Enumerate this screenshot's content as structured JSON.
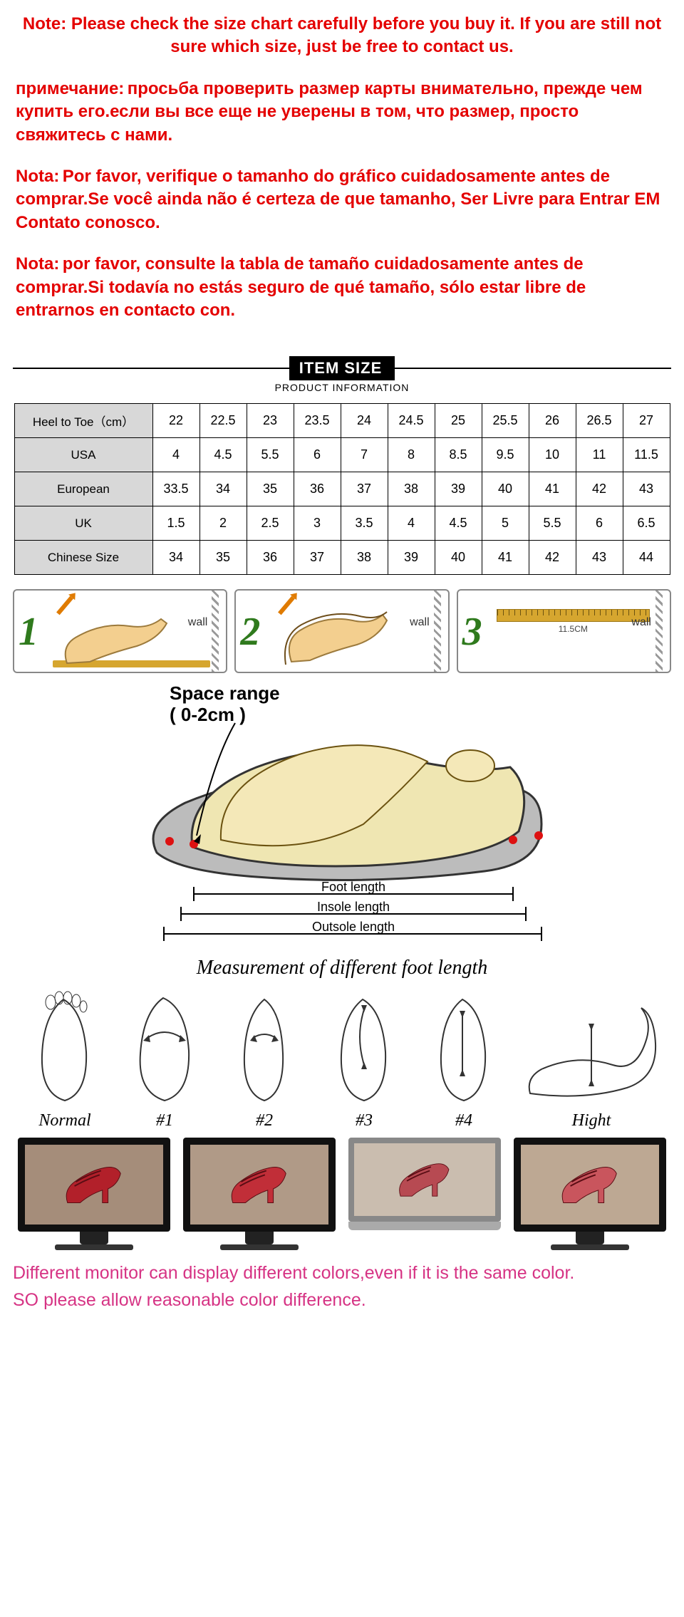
{
  "notes": {
    "en": "Note: Please check the size chart carefully before you buy it. If you are still not sure which size, just be free to contact us.",
    "ru_label": "примечание:",
    "ru_body": "просьба проверить размер карты внимательно, прежде чем купить его.если вы все еще не уверены в том, что размер, просто свяжитесь с нами.",
    "pt_label": "Nota:",
    "pt_body": "Por favor, verifique o tamanho do gráfico cuidadosamente antes de comprar.Se você ainda não é certeza de que tamanho, Ser Livre para Entrar EM Contato conosco.",
    "es_label": "Nota:",
    "es_body": "por favor, consulte la tabla de tamaño cuidadosamente antes de comprar.Si todavía no estás seguro de qué tamaño, sólo estar libre de entrarnos en contacto con."
  },
  "size_header": {
    "title": "ITEM SIZE",
    "subtitle": "PRODUCT INFORMATION"
  },
  "size_table": {
    "rows": [
      {
        "label": "Heel to Toe（cm）",
        "cells": [
          "22",
          "22.5",
          "23",
          "23.5",
          "24",
          "24.5",
          "25",
          "25.5",
          "26",
          "26.5",
          "27"
        ]
      },
      {
        "label": "USA",
        "cells": [
          "4",
          "4.5",
          "5.5",
          "6",
          "7",
          "8",
          "8.5",
          "9.5",
          "10",
          "11",
          "11.5"
        ]
      },
      {
        "label": "European",
        "cells": [
          "33.5",
          "34",
          "35",
          "36",
          "37",
          "38",
          "39",
          "40",
          "41",
          "42",
          "43"
        ]
      },
      {
        "label": "UK",
        "cells": [
          "1.5",
          "2",
          "2.5",
          "3",
          "3.5",
          "4",
          "4.5",
          "5",
          "5.5",
          "6",
          "6.5"
        ]
      },
      {
        "label": "Chinese Size",
        "cells": [
          "34",
          "35",
          "36",
          "37",
          "38",
          "39",
          "40",
          "41",
          "42",
          "43",
          "44"
        ]
      }
    ]
  },
  "steps": {
    "wall_label": "wall",
    "ruler_value": "11.5CM",
    "numbers": [
      "1",
      "2",
      "3"
    ]
  },
  "diagram": {
    "space_range_title": "Space range",
    "space_range_value": "( 0-2cm )",
    "foot_length": "Foot length",
    "insole_length": "Insole length",
    "outsole_length": "Outsole length",
    "caption": "Measurement of different foot length"
  },
  "foot_types": {
    "labels": [
      "Normal",
      "#1",
      "#2",
      "#3",
      "#4",
      "Hight"
    ]
  },
  "monitors": {
    "heel_colors": [
      "#b2202a",
      "#c12e38",
      "#b74a52",
      "#c9555d"
    ],
    "bg_colors": [
      "#a58d7a",
      "#b09a87",
      "#cabdaf",
      "#bda893"
    ]
  },
  "disclaimer": {
    "line1": "Different monitor can display different colors,even if it is the same color.",
    "line2": "SO please allow reasonable color difference."
  },
  "colors": {
    "note_red": "#e40000",
    "accent_pink": "#d63384",
    "step_green": "#2f7a1d"
  }
}
